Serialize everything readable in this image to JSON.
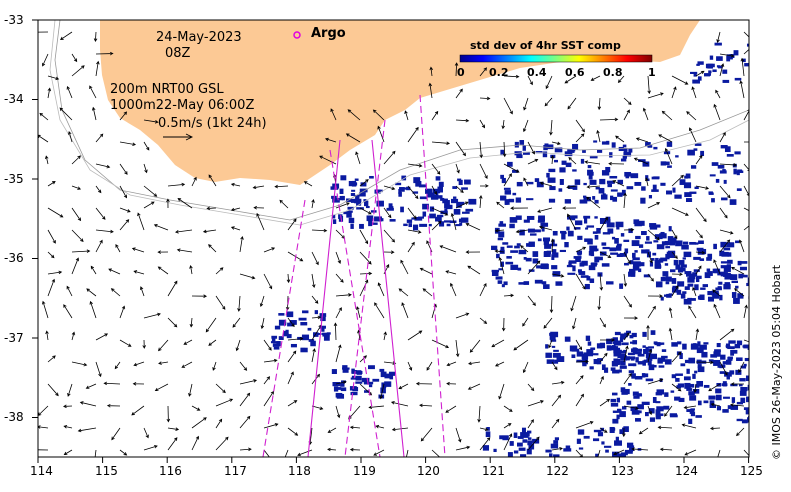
{
  "header": {
    "date": "24-May-2023",
    "hour": "08Z",
    "argo_label": "Argo"
  },
  "info": {
    "line1": "200m  NRT00 GSL",
    "line2": "1000m22-May 06:00Z",
    "scale_label": "0.5m/s (1kt 24h)"
  },
  "colorbar": {
    "title": "std dev of 4hr SST comp",
    "ticks": [
      "0",
      "0.2",
      "0.4",
      "0.6",
      "0.8",
      "1"
    ]
  },
  "axes": {
    "x_ticks": [
      "114",
      "115",
      "116",
      "117",
      "118",
      "119",
      "120",
      "121",
      "122",
      "123",
      "124",
      "125"
    ],
    "y_ticks": [
      "-33",
      "-34",
      "-35",
      "-36",
      "-37",
      "-38"
    ]
  },
  "credit": "© IMOS 26-May-2023 05:04 Hobart",
  "colors": {
    "land": "#fcc995",
    "argo": "#e000e0",
    "track": "#d020d0",
    "sst_low": "#0a1aa0"
  }
}
